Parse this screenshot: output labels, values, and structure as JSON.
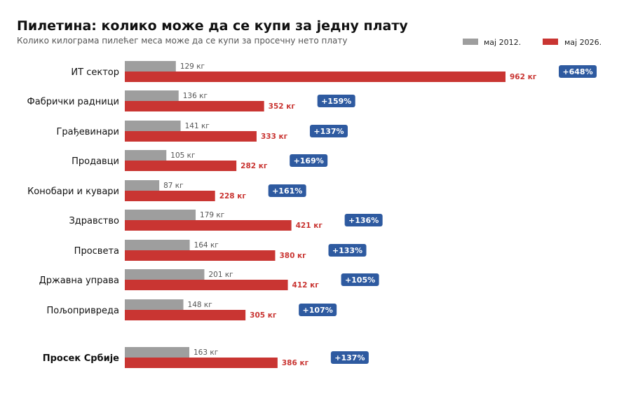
{
  "chart_data": {
    "type": "bar",
    "orientation": "horizontal",
    "title": "Пилетина: колико може да се купи за једну плату",
    "subtitle": "Колико килограма пилећег меса може да се купи за просечну нето плату",
    "categories": [
      "ИТ сектор",
      "Фабрички радници",
      "Грађевинари",
      "Продавци",
      "Конобари и кувари",
      "Здравство",
      "Просвета",
      "Државна управа",
      "Пољопривреда",
      "Просек Србије"
    ],
    "series": [
      {
        "name": "мај 2012.",
        "color": "#9e9e9e",
        "values": [
          129,
          136,
          141,
          105,
          87,
          179,
          164,
          201,
          148,
          163
        ]
      },
      {
        "name": "мај 2026.",
        "color": "#c93532",
        "values": [
          962,
          352,
          333,
          282,
          228,
          421,
          380,
          412,
          305,
          386
        ]
      }
    ],
    "value_labels": {
      "2012": [
        "129 кг",
        "136 кг",
        "141 кг",
        "105 кг",
        "87 кг",
        "179 кг",
        "164 кг",
        "201 кг",
        "148 кг",
        "163 кг"
      ],
      "2026": [
        "962 кг",
        "352 кг",
        "333 кг",
        "282 кг",
        "228 кг",
        "421 кг",
        "380 кг",
        "412 кг",
        "305 кг",
        "386 кг"
      ]
    },
    "change_labels": [
      "+648%",
      "+159%",
      "+137%",
      "+169%",
      "+161%",
      "+136%",
      "+133%",
      "+105%",
      "+107%",
      "+137%"
    ],
    "highlight_category": "Просек Србије",
    "badge_color": "#2e5aa0",
    "legend": "top-right",
    "grid": false,
    "xlim": [
      0,
      962
    ]
  }
}
